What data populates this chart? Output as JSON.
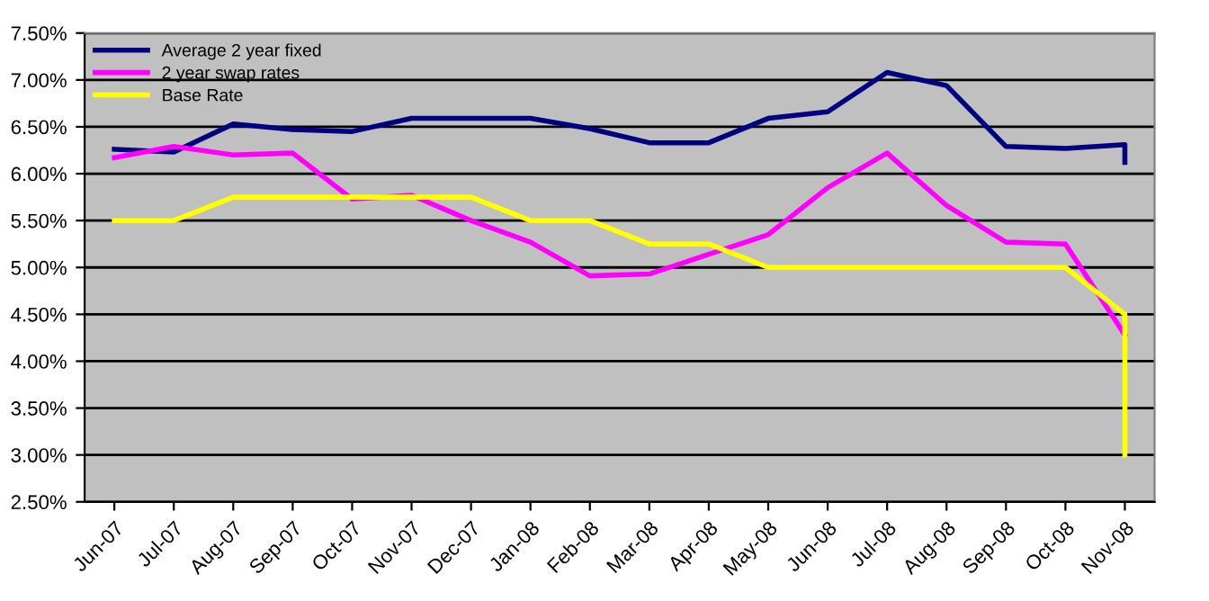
{
  "chart_data": {
    "type": "line",
    "categories": [
      "Jun-07",
      "Jul-07",
      "Aug-07",
      "Sep-07",
      "Oct-07",
      "Nov-07",
      "Dec-07",
      "Jan-08",
      "Feb-08",
      "Mar-08",
      "Apr-08",
      "May-08",
      "Jun-08",
      "Jul-08",
      "Aug-08",
      "Sep-08",
      "Oct-08",
      "Nov-08"
    ],
    "series": [
      {
        "name": "Average 2 year fixed",
        "color": "#000080",
        "x": [
          "Jun-07",
          "Jul-07",
          "Aug-07",
          "Sep-07",
          "Oct-07",
          "Nov-07",
          "Dec-07",
          "Jan-08",
          "Feb-08",
          "Mar-08",
          "Apr-08",
          "May-08",
          "Jun-08",
          "Jul-08",
          "Aug-08",
          "Sep-08",
          "Oct-08",
          "Nov-08",
          "Nov-08"
        ],
        "values": [
          6.26,
          6.23,
          6.53,
          6.47,
          6.45,
          6.59,
          6.59,
          6.59,
          6.48,
          6.33,
          6.33,
          6.59,
          6.66,
          7.08,
          6.94,
          6.29,
          6.27,
          6.31,
          6.12
        ]
      },
      {
        "name": "2 year swap rates",
        "color": "#ff00ff",
        "x": [
          "Jun-07",
          "Jul-07",
          "Aug-07",
          "Sep-07",
          "Oct-07",
          "Nov-07",
          "Dec-07",
          "Jan-08",
          "Feb-08",
          "Mar-08",
          "Apr-08",
          "May-08",
          "Jun-08",
          "Jul-08",
          "Aug-08",
          "Sep-08",
          "Oct-08",
          "Nov-08"
        ],
        "values": [
          6.17,
          6.29,
          6.2,
          6.22,
          5.73,
          5.77,
          5.5,
          5.27,
          4.91,
          4.93,
          5.14,
          5.35,
          5.85,
          6.22,
          5.66,
          5.27,
          5.25,
          4.28
        ]
      },
      {
        "name": "Base Rate",
        "color": "#ffff00",
        "x": [
          "Jun-07",
          "Jul-07",
          "Aug-07",
          "Sep-07",
          "Oct-07",
          "Nov-07",
          "Dec-07",
          "Jan-08",
          "Feb-08",
          "Mar-08",
          "Apr-08",
          "May-08",
          "Jun-08",
          "Jul-08",
          "Aug-08",
          "Sep-08",
          "Oct-08",
          "Nov-08",
          "Nov-08"
        ],
        "values": [
          5.5,
          5.5,
          5.75,
          5.75,
          5.75,
          5.75,
          5.75,
          5.5,
          5.5,
          5.25,
          5.25,
          5.0,
          5.0,
          5.0,
          5.0,
          5.0,
          5.0,
          4.5,
          3.0
        ]
      }
    ],
    "ylim": [
      2.5,
      7.5
    ],
    "yticks": [
      {
        "value": 2.5,
        "label": "2.50%"
      },
      {
        "value": 3.0,
        "label": "3.00%"
      },
      {
        "value": 3.5,
        "label": "3.50%"
      },
      {
        "value": 4.0,
        "label": "4.00%"
      },
      {
        "value": 4.5,
        "label": "4.50%"
      },
      {
        "value": 5.0,
        "label": "5.00%"
      },
      {
        "value": 5.5,
        "label": "5.50%"
      },
      {
        "value": 6.0,
        "label": "6.00%"
      },
      {
        "value": 6.5,
        "label": "6.50%"
      },
      {
        "value": 7.0,
        "label": "7.00%"
      },
      {
        "value": 7.5,
        "label": "7.50%"
      }
    ],
    "grid": "y",
    "legend": "top left",
    "marker": "none",
    "line_style": "solid"
  }
}
